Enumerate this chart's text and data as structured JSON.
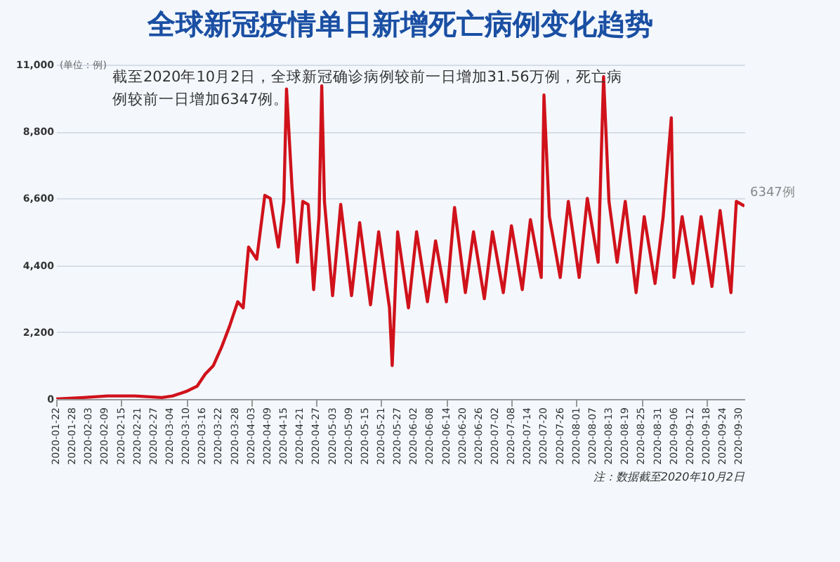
{
  "chart_data": {
    "type": "line",
    "title": "全球新冠疫情单日新增死亡病例变化趋势",
    "ylabel": "(单位：例)",
    "series": [
      {
        "color": "#d0121b",
        "x": [
          "2020-01-22",
          "2020-02-01",
          "2020-02-10",
          "2020-02-20",
          "2020-03-01",
          "2020-03-05",
          "2020-03-10",
          "2020-03-14",
          "2020-03-17",
          "2020-03-20",
          "2020-03-23",
          "2020-03-26",
          "2020-03-29",
          "2020-03-31",
          "2020-04-02",
          "2020-04-05",
          "2020-04-08",
          "2020-04-10",
          "2020-04-13",
          "2020-04-15",
          "2020-04-16",
          "2020-04-18",
          "2020-04-20",
          "2020-04-22",
          "2020-04-24",
          "2020-04-26",
          "2020-04-28",
          "2020-04-29",
          "2020-04-30",
          "2020-05-03",
          "2020-05-06",
          "2020-05-10",
          "2020-05-13",
          "2020-05-17",
          "2020-05-20",
          "2020-05-24",
          "2020-05-25",
          "2020-05-27",
          "2020-05-31",
          "2020-06-03",
          "2020-06-07",
          "2020-06-10",
          "2020-06-14",
          "2020-06-17",
          "2020-06-21",
          "2020-06-24",
          "2020-06-28",
          "2020-07-01",
          "2020-07-05",
          "2020-07-08",
          "2020-07-12",
          "2020-07-15",
          "2020-07-19",
          "2020-07-20",
          "2020-07-22",
          "2020-07-26",
          "2020-07-29",
          "2020-08-02",
          "2020-08-05",
          "2020-08-09",
          "2020-08-11",
          "2020-08-13",
          "2020-08-16",
          "2020-08-19",
          "2020-08-23",
          "2020-08-26",
          "2020-08-30",
          "2020-09-02",
          "2020-09-05",
          "2020-09-06",
          "2020-09-09",
          "2020-09-13",
          "2020-09-16",
          "2020-09-20",
          "2020-09-23",
          "2020-09-27",
          "2020-09-29",
          "2020-10-02"
        ],
        "values": [
          0,
          50,
          100,
          100,
          50,
          100,
          250,
          420,
          820,
          1100,
          1700,
          2400,
          3200,
          3000,
          5000,
          4600,
          6700,
          6600,
          5000,
          6500,
          10200,
          7000,
          4500,
          6500,
          6400,
          3600,
          6000,
          10300,
          6500,
          3400,
          6400,
          3400,
          5800,
          3100,
          5500,
          3000,
          1100,
          5500,
          3000,
          5500,
          3200,
          5200,
          3200,
          6300,
          3500,
          5500,
          3300,
          5500,
          3500,
          5700,
          3600,
          5900,
          4000,
          10000,
          6000,
          4000,
          6500,
          4000,
          6600,
          4500,
          10600,
          6500,
          4500,
          6500,
          3500,
          6000,
          3800,
          6000,
          9250,
          4000,
          6000,
          3800,
          6000,
          3700,
          6200,
          3500,
          6500,
          6347
        ]
      }
    ],
    "xlim": [
      "2020-01-22",
      "2020-10-02"
    ],
    "xticks": [
      "2020-01-22",
      "2020-01-28",
      "2020-02-03",
      "2020-02-09",
      "2020-02-15",
      "2020-02-21",
      "2020-02-27",
      "2020-03-04",
      "2020-03-10",
      "2020-03-16",
      "2020-03-22",
      "2020-03-28",
      "2020-04-03",
      "2020-04-09",
      "2020-04-15",
      "2020-04-21",
      "2020-04-27",
      "2020-05-03",
      "2020-05-09",
      "2020-05-15",
      "2020-05-21",
      "2020-05-27",
      "2020-06-02",
      "2020-06-08",
      "2020-06-14",
      "2020-06-20",
      "2020-06-26",
      "2020-07-02",
      "2020-07-08",
      "2020-07-14",
      "2020-07-20",
      "2020-07-26",
      "2020-08-01",
      "2020-08-07",
      "2020-08-13",
      "2020-08-19",
      "2020-08-25",
      "2020-08-31",
      "2020-09-06",
      "2020-09-12",
      "2020-09-18",
      "2020-09-24",
      "2020-09-30"
    ],
    "ylim": [
      0,
      11000
    ],
    "yticks": [
      0,
      {
        "value": 2200,
        "label": "2,200"
      },
      {
        "value": 4400,
        "label": "4,400"
      },
      {
        "value": 6600,
        "label": "6,600"
      },
      {
        "value": 8800,
        "label": "8,800"
      },
      {
        "value": 11000,
        "label": "11,000"
      }
    ],
    "grid": "y",
    "annotations": [
      "截至2020年10月2日，全球新冠确诊病例较前一日增加31.56万例，死亡病例较前一日增加6347例。",
      {
        "text": "6347例",
        "x": "2020-10-02",
        "y": 6347
      },
      "注：数据截至2020年10月2日"
    ]
  }
}
